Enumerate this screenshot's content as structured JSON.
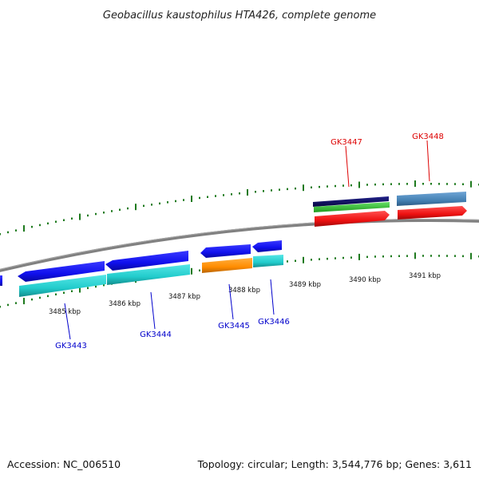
{
  "title": "Geobacillus kaustophilus HTA426, complete genome",
  "footer": {
    "accession": "Accession: NC_006510",
    "summary": "Topology: circular; Length: 3,544,776 bp; Genes: 3,611"
  },
  "colors": {
    "backbone": "#808080",
    "tick": "#1e7a1e",
    "label_blue": "#0000cc",
    "label_red": "#dd0000",
    "feature_blue": "#1010ee",
    "feature_cyan": "#22cccc",
    "feature_orange": "#ff8c00",
    "feature_navy": "#0a0a6a",
    "feature_green": "#33cc33",
    "feature_red": "#ee1111",
    "feature_steel": "#4682b4"
  },
  "kbp_labels": [
    "3485 kbp",
    "3486 kbp",
    "3487 kbp",
    "3488 kbp",
    "3489 kbp",
    "3490 kbp",
    "3491 kbp"
  ],
  "gene_labels": [
    {
      "text": "GK3443",
      "color": "blue"
    },
    {
      "text": "GK3444",
      "color": "blue"
    },
    {
      "text": "GK3445",
      "color": "blue"
    },
    {
      "text": "GK3446",
      "color": "blue"
    },
    {
      "text": "GK3447",
      "color": "red"
    },
    {
      "text": "GK3448",
      "color": "red"
    }
  ]
}
